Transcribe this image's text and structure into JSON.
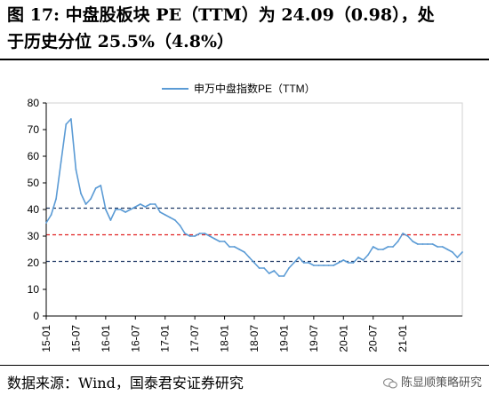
{
  "header": {
    "title_line1": "图 17:  中盘股板块 PE（TTM）为 24.09（0.98），处",
    "title_line2": "于历史分位 25.5%（4.8%）"
  },
  "footer": {
    "source": "数据来源：Wind，国泰君安证券研究",
    "watermark": "陈显顺策略研究"
  },
  "chart_data": {
    "type": "line",
    "legend_position": "top-center",
    "grid": false,
    "series": [
      {
        "name": "申万中盘指数PE（TTM）",
        "color": "#5b9bd5",
        "points": [
          [
            "2015-01",
            35
          ],
          [
            "2015-02",
            38
          ],
          [
            "2015-03",
            44
          ],
          [
            "2015-04",
            58
          ],
          [
            "2015-05",
            72
          ],
          [
            "2015-06",
            74
          ],
          [
            "2015-07",
            55
          ],
          [
            "2015-08",
            46
          ],
          [
            "2015-09",
            42
          ],
          [
            "2015-10",
            44
          ],
          [
            "2015-11",
            48
          ],
          [
            "2015-12",
            49
          ],
          [
            "2016-01",
            40
          ],
          [
            "2016-02",
            36
          ],
          [
            "2016-03",
            40
          ],
          [
            "2016-04",
            40
          ],
          [
            "2016-05",
            39
          ],
          [
            "2016-06",
            40
          ],
          [
            "2016-07",
            41
          ],
          [
            "2016-08",
            42
          ],
          [
            "2016-09",
            41
          ],
          [
            "2016-10",
            42
          ],
          [
            "2016-11",
            42
          ],
          [
            "2016-12",
            39
          ],
          [
            "2017-01",
            38
          ],
          [
            "2017-02",
            37
          ],
          [
            "2017-03",
            36
          ],
          [
            "2017-04",
            34
          ],
          [
            "2017-05",
            31
          ],
          [
            "2017-06",
            30
          ],
          [
            "2017-07",
            30
          ],
          [
            "2017-08",
            31
          ],
          [
            "2017-09",
            31
          ],
          [
            "2017-10",
            30
          ],
          [
            "2017-11",
            29
          ],
          [
            "2017-12",
            28
          ],
          [
            "2018-01",
            28
          ],
          [
            "2018-02",
            26
          ],
          [
            "2018-03",
            26
          ],
          [
            "2018-04",
            25
          ],
          [
            "2018-05",
            24
          ],
          [
            "2018-06",
            22
          ],
          [
            "2018-07",
            20
          ],
          [
            "2018-08",
            18
          ],
          [
            "2018-09",
            18
          ],
          [
            "2018-10",
            16
          ],
          [
            "2018-11",
            17
          ],
          [
            "2018-12",
            15
          ],
          [
            "2019-01",
            15
          ],
          [
            "2019-02",
            18
          ],
          [
            "2019-03",
            20
          ],
          [
            "2019-04",
            22
          ],
          [
            "2019-05",
            20
          ],
          [
            "2019-06",
            20
          ],
          [
            "2019-07",
            19
          ],
          [
            "2019-08",
            19
          ],
          [
            "2019-09",
            19
          ],
          [
            "2019-10",
            19
          ],
          [
            "2019-11",
            19
          ],
          [
            "2019-12",
            20
          ],
          [
            "2020-01",
            21
          ],
          [
            "2020-02",
            20
          ],
          [
            "2020-03",
            20
          ],
          [
            "2020-04",
            22
          ],
          [
            "2020-05",
            21
          ],
          [
            "2020-06",
            23
          ],
          [
            "2020-07",
            26
          ],
          [
            "2020-08",
            25
          ],
          [
            "2020-09",
            25
          ],
          [
            "2020-10",
            26
          ],
          [
            "2020-11",
            26
          ],
          [
            "2020-12",
            28
          ],
          [
            "2021-01",
            31
          ],
          [
            "2021-02",
            30
          ],
          [
            "2021-03",
            28
          ],
          [
            "2021-04",
            27
          ],
          [
            "2021-05",
            27
          ],
          [
            "2021-06",
            27
          ],
          [
            "2021-07",
            27
          ],
          [
            "2021-08",
            26
          ],
          [
            "2021-09",
            26
          ],
          [
            "2021-10",
            25
          ],
          [
            "2021-11",
            24
          ],
          [
            "2021-12",
            22
          ],
          [
            "2022-01",
            24
          ]
        ]
      }
    ],
    "reference_lines": [
      {
        "value": 40.5,
        "color": "#1f3864",
        "style": "dashed"
      },
      {
        "value": 30.5,
        "color": "#e02020",
        "style": "dashed"
      },
      {
        "value": 20.5,
        "color": "#1f3864",
        "style": "dashed"
      }
    ],
    "ylim": [
      0,
      80
    ],
    "yticks": [
      0,
      10,
      20,
      30,
      40,
      50,
      60,
      70,
      80
    ],
    "xlim": [
      "2015-01",
      "2022-01"
    ],
    "xticks": [
      "15-01",
      "15-07",
      "16-01",
      "16-07",
      "17-01",
      "17-07",
      "18-01",
      "18-07",
      "19-01",
      "19-07",
      "20-01",
      "20-07",
      "21-01"
    ],
    "xlabel": "",
    "ylabel": ""
  }
}
